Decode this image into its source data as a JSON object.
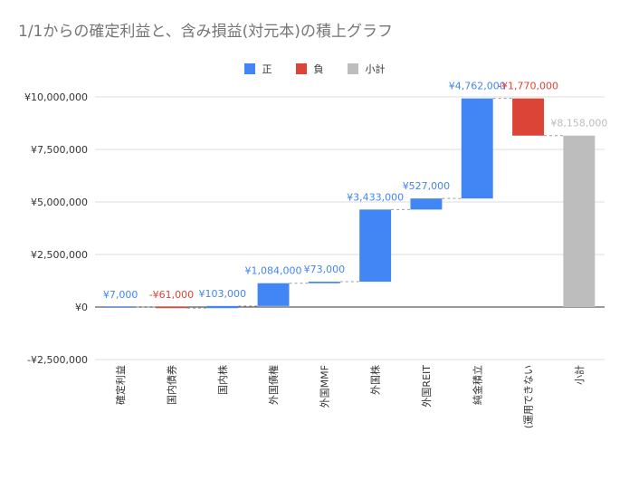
{
  "chart_data": {
    "type": "waterfall",
    "title": "1/1からの確定利益と、含み損益(対元本)の積上グラフ",
    "legend": [
      {
        "label": "正",
        "color": "#4285f4"
      },
      {
        "label": "負",
        "color": "#db4437"
      },
      {
        "label": "小計",
        "color": "#bdbdbd"
      }
    ],
    "legend_position": "top",
    "categories": [
      "確定利益",
      "国内債券",
      "国内株",
      "外国債権",
      "外国MMF",
      "外国株",
      "外国REIT",
      "純金積立",
      "(運用できない",
      "小計"
    ],
    "values": [
      7000,
      -61000,
      103000,
      1084000,
      73000,
      3433000,
      527000,
      4762000,
      -1770000,
      8158000
    ],
    "kinds": [
      "pos",
      "neg",
      "pos",
      "pos",
      "pos",
      "pos",
      "pos",
      "pos",
      "neg",
      "subtotal"
    ],
    "data_labels": [
      "¥7,000",
      "-¥61,000",
      "¥103,000",
      "¥1,084,000",
      "¥73,000",
      "¥3,433,000",
      "¥527,000",
      "¥4,762,000",
      "-¥1,770,000",
      "¥8,158,000"
    ],
    "ylim": [
      -2500000,
      10000000
    ],
    "yticks": [
      -2500000,
      0,
      2500000,
      5000000,
      7500000,
      10000000
    ],
    "ytick_labels": [
      "-¥2,500,000",
      "¥0",
      "¥2,500,000",
      "¥5,000,000",
      "¥7,500,000",
      "¥10,000,000"
    ],
    "grid": true
  }
}
